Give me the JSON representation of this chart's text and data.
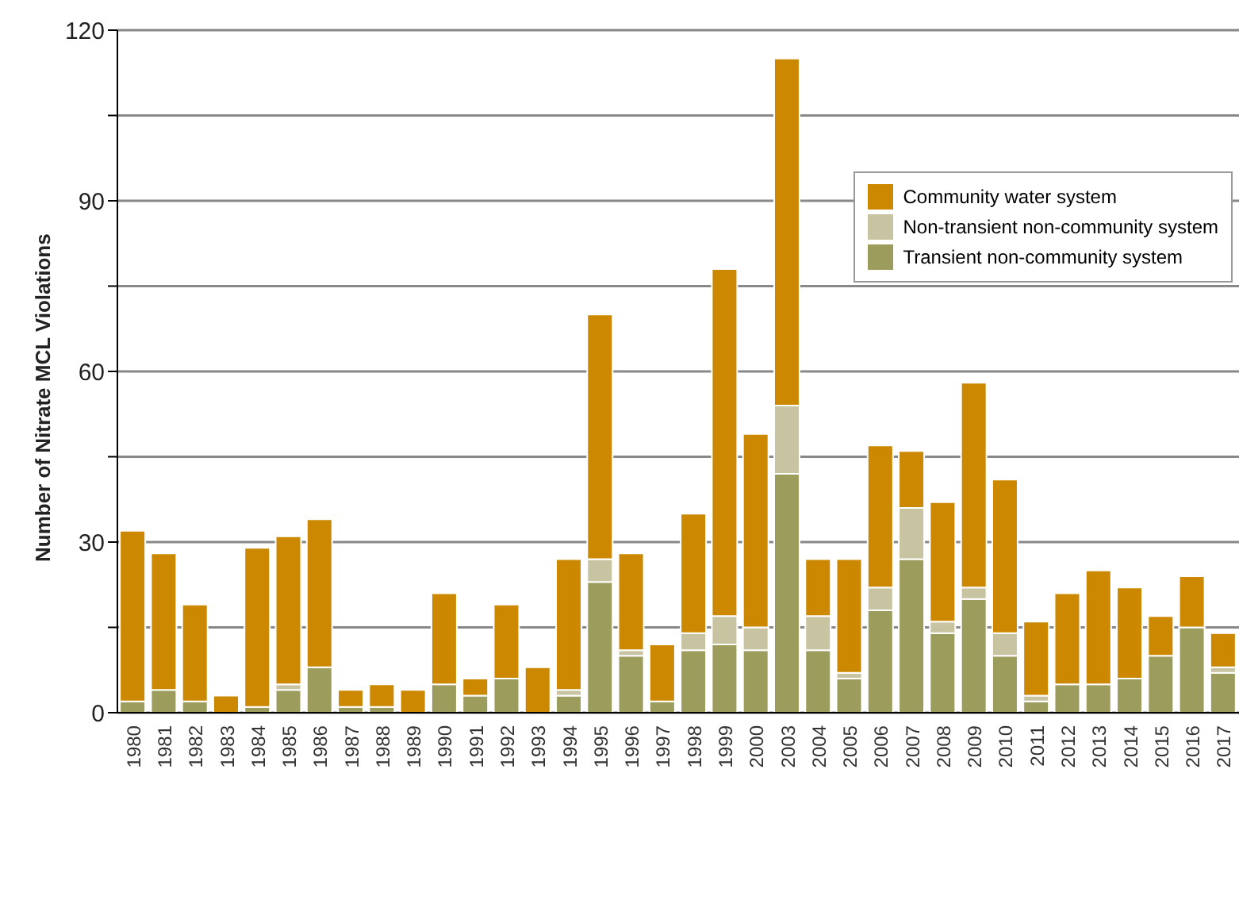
{
  "chart_data": {
    "type": "bar",
    "stacked": true,
    "ylabel": "Number of Nitrate MCL Violations",
    "categories": [
      "1980",
      "1981",
      "1982",
      "1983",
      "1984",
      "1985",
      "1986",
      "1987",
      "1988",
      "1989",
      "1990",
      "1991",
      "1992",
      "1993",
      "1994",
      "1995",
      "1996",
      "1997",
      "1998",
      "1999",
      "2000",
      "2003",
      "2004",
      "2005",
      "2006",
      "2007",
      "2008",
      "2009",
      "2010",
      "2011",
      "2012",
      "2013",
      "2014",
      "2015",
      "2016",
      "2017"
    ],
    "series": [
      {
        "name": "Transient non-community system",
        "color": "#9c9c5c",
        "values": [
          2,
          4,
          2,
          0,
          1,
          4,
          8,
          1,
          1,
          0,
          5,
          3,
          6,
          0,
          3,
          23,
          10,
          2,
          11,
          12,
          11,
          42,
          11,
          6,
          18,
          27,
          14,
          20,
          10,
          2,
          5,
          5,
          6,
          10,
          15,
          7
        ]
      },
      {
        "name": "Non-transient non-community system",
        "color": "#c8c3a0",
        "values": [
          0,
          0,
          0,
          0,
          0,
          1,
          0,
          0,
          0,
          0,
          0,
          0,
          0,
          0,
          1,
          4,
          1,
          0,
          3,
          5,
          4,
          12,
          6,
          1,
          4,
          9,
          2,
          2,
          4,
          1,
          0,
          0,
          0,
          0,
          0,
          1
        ]
      },
      {
        "name": "Community water system",
        "color": "#cc8800",
        "values": [
          30,
          24,
          17,
          3,
          28,
          26,
          26,
          3,
          4,
          4,
          16,
          3,
          13,
          8,
          23,
          43,
          17,
          10,
          21,
          61,
          34,
          61,
          10,
          20,
          25,
          10,
          21,
          36,
          27,
          13,
          16,
          20,
          16,
          7,
          9,
          6
        ]
      }
    ],
    "ylim": [
      0,
      120
    ],
    "yticks": [
      0,
      {
        "value": 15,
        "label": null
      },
      30,
      {
        "value": 45,
        "label": null
      },
      60,
      {
        "value": 75,
        "label": null
      },
      90,
      {
        "value": 105,
        "label": null
      },
      120
    ],
    "grid": "y",
    "legend": "right"
  }
}
